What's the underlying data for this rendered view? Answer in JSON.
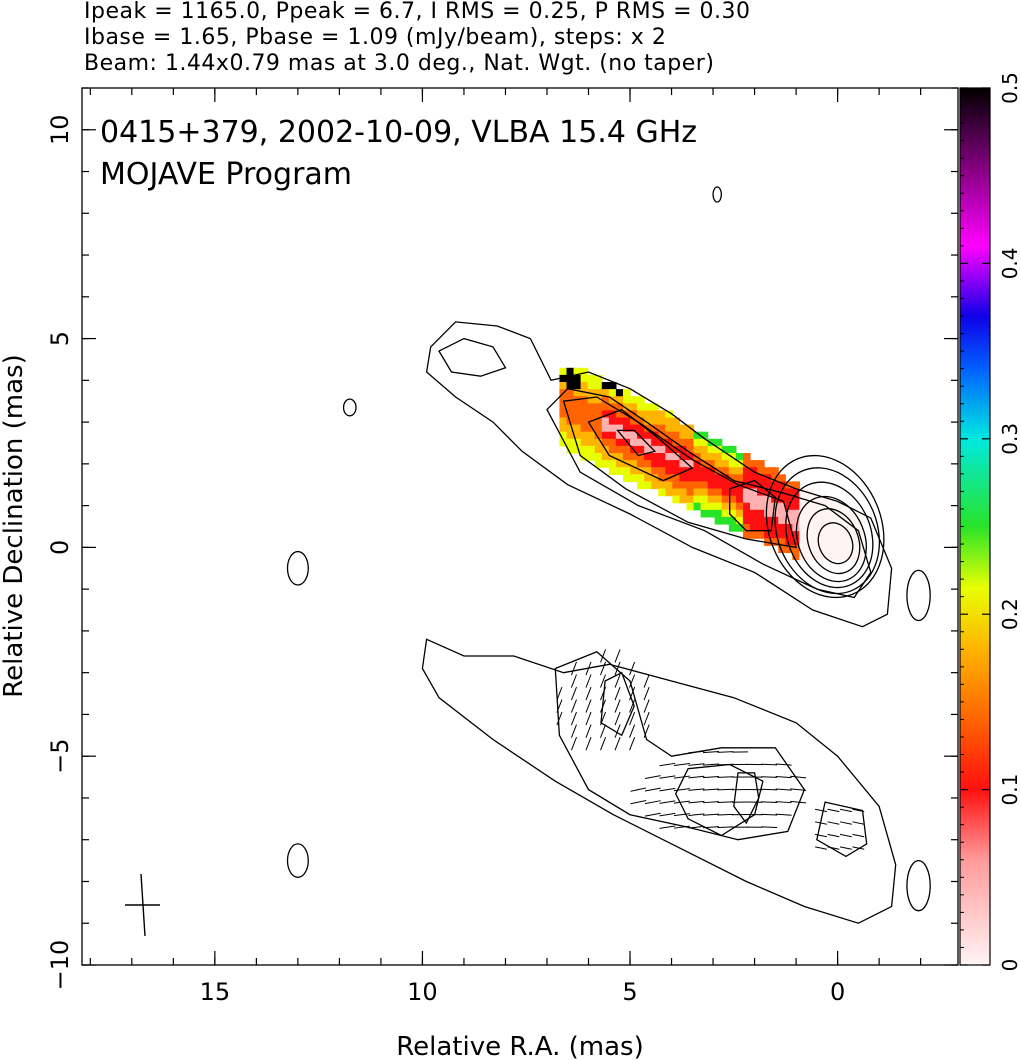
{
  "header": {
    "line1": "Ipeak = 1165.0, Ppeak = 6.7, I RMS = 0.25, P RMS = 0.30",
    "line2": "Ibase = 1.65, Pbase = 1.09 (mJy/beam), steps: x 2",
    "line3": "Beam: 1.44x0.79 mas at 3.0 deg., Nat. Wgt. (no taper)"
  },
  "chart_data": {
    "type": "heatmap",
    "title": "0415+379, 2002-10-09, VLBA 15.4 GHz",
    "subtitle": "MOJAVE Program",
    "xlabel": "Relative R.A. (mas)",
    "ylabel": "Relative Declination (mas)",
    "xlim": [
      18.2,
      -2.9
    ],
    "ylim": [
      -10,
      11
    ],
    "x_ticks": [
      15,
      10,
      5,
      0
    ],
    "x_tick_labels": [
      "15",
      "10",
      "5",
      "0"
    ],
    "y_ticks": [
      10,
      5,
      0,
      -5,
      -10
    ],
    "y_tick_labels": [
      "10",
      "5",
      "0",
      "−5",
      "−10"
    ],
    "colorbar": {
      "range": [
        0,
        0.5
      ],
      "ticks": [
        0,
        0.1,
        0.2,
        0.3,
        0.4,
        0.5
      ],
      "tick_labels": [
        "0",
        "0.1",
        "0.2",
        "0.3",
        "0.4",
        "0.5"
      ]
    },
    "beam": {
      "major_mas": 1.44,
      "minor_mas": 0.79,
      "pa_deg": 3.0
    },
    "total_intensity_contours_upper": [
      {
        "cx": 0.05,
        "cy": 0.1,
        "rx": 0.4,
        "ry": 0.5
      },
      {
        "cx": 0.1,
        "cy": 0.15,
        "rx": 0.6,
        "ry": 0.8
      },
      {
        "cx": 0.15,
        "cy": 0.2,
        "rx": 0.8,
        "ry": 1.05
      },
      {
        "cx": 0.2,
        "cy": 0.3,
        "rx": 1.0,
        "ry": 1.3
      },
      {
        "cx": 0.25,
        "cy": 0.4,
        "rx": 1.2,
        "ry": 1.55
      },
      {
        "cx": 0.3,
        "cy": 0.5,
        "rx": 1.35,
        "ry": 1.75
      }
    ],
    "small_contours": [
      {
        "x": 13.0,
        "y": -0.5,
        "rx": 0.25,
        "ry": 0.4
      },
      {
        "x": 13.0,
        "y": -7.5,
        "rx": 0.25,
        "ry": 0.4
      },
      {
        "x": -1.95,
        "y": -1.15,
        "rx": 0.28,
        "ry": 0.6
      },
      {
        "x": -1.95,
        "y": -8.1,
        "rx": 0.28,
        "ry": 0.6
      },
      {
        "x": 11.75,
        "y": 3.35,
        "rx": 0.15,
        "ry": 0.2
      },
      {
        "x": 2.9,
        "y": 8.45,
        "rx": 0.1,
        "ry": 0.18
      }
    ],
    "polarization_region": {
      "y_offset_mas": -7.0
    }
  }
}
